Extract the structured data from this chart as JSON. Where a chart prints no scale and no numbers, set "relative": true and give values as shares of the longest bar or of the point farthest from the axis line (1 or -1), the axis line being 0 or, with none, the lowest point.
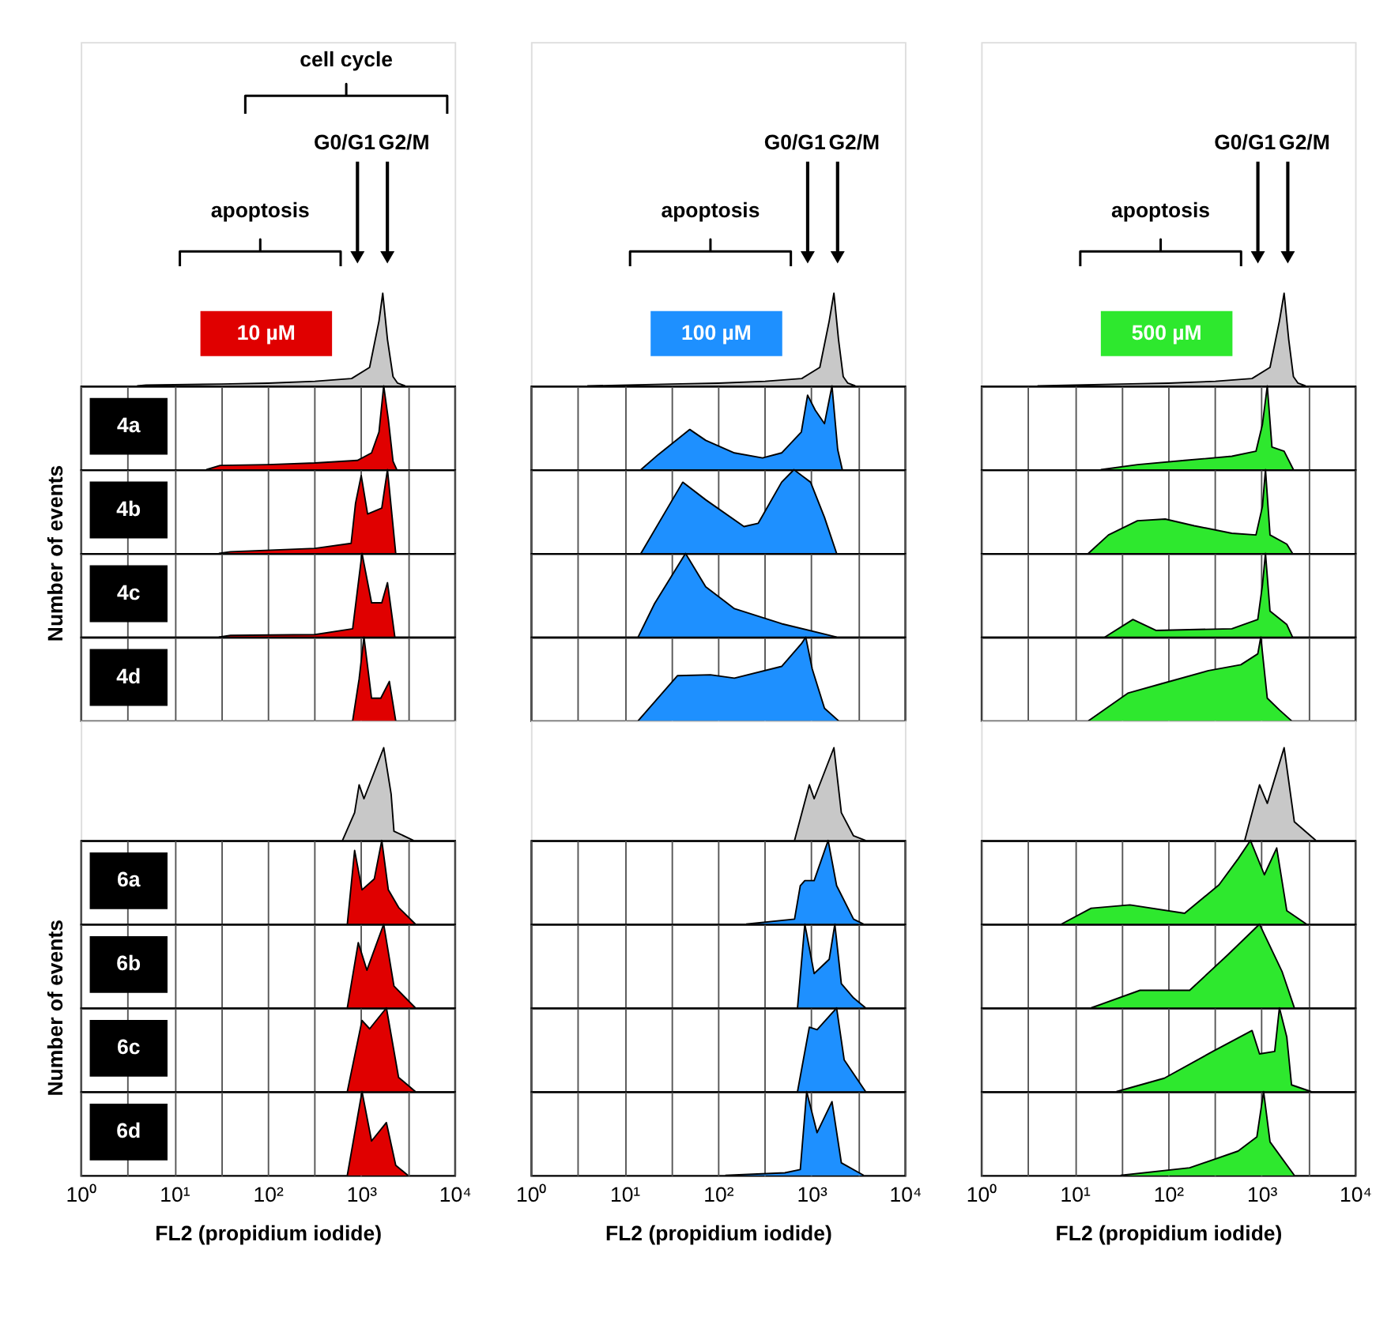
{
  "chart_data": [
    {
      "type": "area",
      "relative": true,
      "log": "x",
      "xlim": [
        1,
        10000
      ],
      "tick_labels": false,
      "title": "10 µM",
      "color": "#c8c8c8",
      "annotations": [
        "cell cycle",
        "G0/G1",
        "G2/M",
        "apoptosis"
      ],
      "x": [
        4.0,
        5.0,
        32,
        100,
        320,
        790,
        1230,
        1550,
        1700,
        1910,
        2190,
        2450,
        2950
      ],
      "values": [
        0,
        0.01,
        0.02,
        0.03,
        0.05,
        0.08,
        0.2,
        0.7,
        1,
        0.5,
        0.1,
        0.03,
        0
      ]
    },
    {
      "type": "area",
      "relative": true,
      "log": "x",
      "xlim": [
        1,
        10000
      ],
      "tick_labels": false,
      "title": "100 µM",
      "color": "#c8c8c8",
      "annotations": [
        "G0/G1",
        "G2/M",
        "apoptosis"
      ],
      "x": [
        4.0,
        32,
        100,
        320,
        790,
        1230,
        1550,
        1740,
        1950,
        2190,
        2450,
        2950
      ],
      "values": [
        0,
        0.02,
        0.03,
        0.05,
        0.08,
        0.2,
        0.7,
        1,
        0.5,
        0.1,
        0.03,
        0
      ]
    },
    {
      "type": "area",
      "relative": true,
      "log": "x",
      "xlim": [
        1,
        10000
      ],
      "tick_labels": false,
      "title": "500 µM",
      "color": "#c8c8c8",
      "annotations": [
        "G0/G1",
        "G2/M",
        "apoptosis"
      ],
      "x": [
        4.0,
        32,
        100,
        320,
        790,
        1230,
        1550,
        1740,
        1950,
        2190,
        2450,
        2950
      ],
      "values": [
        0,
        0.02,
        0.03,
        0.05,
        0.08,
        0.2,
        0.7,
        1,
        0.5,
        0.1,
        0.03,
        0
      ]
    },
    {
      "type": "area",
      "relative": true,
      "log": "x",
      "xlim": [
        1,
        10000
      ],
      "xticks": [
        {
          "value": 1,
          "label": null
        },
        {
          "value": 3.16,
          "label": null
        },
        {
          "value": 10,
          "label": null
        },
        {
          "value": 31.6,
          "label": null
        },
        {
          "value": 100,
          "label": null
        },
        {
          "value": 316,
          "label": null
        },
        {
          "value": 1000,
          "label": null
        },
        {
          "value": 3160,
          "label": null
        },
        {
          "value": 10000,
          "label": null
        }
      ],
      "grid": "x",
      "tick_labels": false,
      "title": "4a",
      "color": "#e00000",
      "x": [
        22,
        31,
        100,
        320,
        910,
        1290,
        1550,
        1740,
        1950,
        2190,
        2400
      ],
      "values": [
        0,
        0.05,
        0.06,
        0.08,
        0.11,
        0.2,
        0.45,
        1,
        0.6,
        0.1,
        0
      ]
    },
    {
      "type": "area",
      "relative": true,
      "log": "x",
      "xlim": [
        1,
        10000
      ],
      "xticks": [
        {
          "value": 1,
          "label": null
        },
        {
          "value": 3.16,
          "label": null
        },
        {
          "value": 10,
          "label": null
        },
        {
          "value": 31.6,
          "label": null
        },
        {
          "value": 100,
          "label": null
        },
        {
          "value": 316,
          "label": null
        },
        {
          "value": 1000,
          "label": null
        },
        {
          "value": 3160,
          "label": null
        },
        {
          "value": 10000,
          "label": null
        }
      ],
      "grid": "x",
      "tick_labels": false,
      "color": "#1e90ff",
      "x": [
        15,
        23,
        50,
        74,
        150,
        300,
        480,
        780,
        910,
        1100,
        1380,
        1660,
        1910,
        2140
      ],
      "values": [
        0,
        0.18,
        0.48,
        0.35,
        0.2,
        0.14,
        0.2,
        0.45,
        0.89,
        0.71,
        0.55,
        1,
        0.24,
        0
      ]
    },
    {
      "type": "area",
      "relative": true,
      "log": "x",
      "xlim": [
        1,
        10000
      ],
      "xticks": [
        {
          "value": 1,
          "label": null
        },
        {
          "value": 3.16,
          "label": null
        },
        {
          "value": 10,
          "label": null
        },
        {
          "value": 31.6,
          "label": null
        },
        {
          "value": 100,
          "label": null
        },
        {
          "value": 316,
          "label": null
        },
        {
          "value": 1000,
          "label": null
        },
        {
          "value": 3160,
          "label": null
        },
        {
          "value": 10000,
          "label": null
        }
      ],
      "grid": "x",
      "tick_labels": false,
      "color": "#2ee82e",
      "x": [
        19,
        47,
        150,
        480,
        870,
        1020,
        1150,
        1290,
        1740,
        2190
      ],
      "values": [
        0,
        0.06,
        0.11,
        0.16,
        0.22,
        0.54,
        1,
        0.27,
        0.22,
        0
      ]
    },
    {
      "type": "area",
      "relative": true,
      "log": "x",
      "xlim": [
        1,
        10000
      ],
      "xticks": [
        {
          "value": 1,
          "label": null
        },
        {
          "value": 3.16,
          "label": null
        },
        {
          "value": 10,
          "label": null
        },
        {
          "value": 31.6,
          "label": null
        },
        {
          "value": 100,
          "label": null
        },
        {
          "value": 316,
          "label": null
        },
        {
          "value": 1000,
          "label": null
        },
        {
          "value": 3160,
          "label": null
        },
        {
          "value": 10000,
          "label": null
        }
      ],
      "grid": "x",
      "tick_labels": false,
      "title": "4b",
      "ylabel": "Number of events",
      "color": "#e00000",
      "x": [
        30,
        40,
        320,
        780,
        870,
        1000,
        1170,
        1660,
        1910,
        2340
      ],
      "values": [
        0,
        0.02,
        0.06,
        0.12,
        0.6,
        0.93,
        0.47,
        0.54,
        1,
        0
      ]
    },
    {
      "type": "area",
      "relative": true,
      "log": "x",
      "xlim": [
        1,
        10000
      ],
      "xticks": [
        {
          "value": 1,
          "label": null
        },
        {
          "value": 3.16,
          "label": null
        },
        {
          "value": 10,
          "label": null
        },
        {
          "value": 31.6,
          "label": null
        },
        {
          "value": 100,
          "label": null
        },
        {
          "value": 316,
          "label": null
        },
        {
          "value": 1000,
          "label": null
        },
        {
          "value": 3160,
          "label": null
        },
        {
          "value": 10000,
          "label": null
        }
      ],
      "grid": "x",
      "tick_labels": false,
      "color": "#1e90ff",
      "x": [
        15,
        42,
        74,
        190,
        270,
        480,
        650,
        980,
        1380,
        1860
      ],
      "values": [
        0,
        0.85,
        0.64,
        0.32,
        0.36,
        0.85,
        1,
        0.85,
        0.43,
        0
      ]
    },
    {
      "type": "area",
      "relative": true,
      "log": "x",
      "xlim": [
        1,
        10000
      ],
      "xticks": [
        {
          "value": 1,
          "label": null
        },
        {
          "value": 3.16,
          "label": null
        },
        {
          "value": 10,
          "label": null
        },
        {
          "value": 31.6,
          "label": null
        },
        {
          "value": 100,
          "label": null
        },
        {
          "value": 316,
          "label": null
        },
        {
          "value": 1000,
          "label": null
        },
        {
          "value": 3160,
          "label": null
        },
        {
          "value": 10000,
          "label": null
        }
      ],
      "grid": "x",
      "tick_labels": false,
      "color": "#2ee82e",
      "x": [
        14,
        23,
        47,
        93,
        190,
        480,
        870,
        1020,
        1100,
        1230,
        1860,
        2140
      ],
      "values": [
        0,
        0.22,
        0.39,
        0.41,
        0.33,
        0.24,
        0.22,
        0.56,
        1,
        0.22,
        0.11,
        0
      ]
    },
    {
      "type": "area",
      "relative": true,
      "log": "x",
      "xlim": [
        1,
        10000
      ],
      "xticks": [
        {
          "value": 1,
          "label": null
        },
        {
          "value": 3.16,
          "label": null
        },
        {
          "value": 10,
          "label": null
        },
        {
          "value": 31.6,
          "label": null
        },
        {
          "value": 100,
          "label": null
        },
        {
          "value": 316,
          "label": null
        },
        {
          "value": 1000,
          "label": null
        },
        {
          "value": 3160,
          "label": null
        },
        {
          "value": 10000,
          "label": null
        }
      ],
      "grid": "x",
      "tick_labels": false,
      "title": "4c",
      "color": "#e00000",
      "x": [
        30,
        40,
        320,
        810,
        1020,
        1290,
        1660,
        1910,
        2290
      ],
      "values": [
        0,
        0.02,
        0.03,
        0.1,
        1,
        0.41,
        0.41,
        0.65,
        0
      ]
    },
    {
      "type": "area",
      "relative": true,
      "log": "x",
      "xlim": [
        1,
        10000
      ],
      "xticks": [
        {
          "value": 1,
          "label": null
        },
        {
          "value": 3.16,
          "label": null
        },
        {
          "value": 10,
          "label": null
        },
        {
          "value": 31.6,
          "label": null
        },
        {
          "value": 100,
          "label": null
        },
        {
          "value": 316,
          "label": null
        },
        {
          "value": 1000,
          "label": null
        },
        {
          "value": 3160,
          "label": null
        },
        {
          "value": 10000,
          "label": null
        }
      ],
      "grid": "x",
      "tick_labels": false,
      "color": "#1e90ff",
      "x": [
        14,
        21,
        45,
        74,
        150,
        480,
        1860
      ],
      "values": [
        0,
        0.4,
        1,
        0.6,
        0.34,
        0.16,
        0
      ]
    },
    {
      "type": "area",
      "relative": true,
      "log": "x",
      "xlim": [
        1,
        10000
      ],
      "xticks": [
        {
          "value": 1,
          "label": null
        },
        {
          "value": 3.16,
          "label": null
        },
        {
          "value": 10,
          "label": null
        },
        {
          "value": 31.6,
          "label": null
        },
        {
          "value": 100,
          "label": null
        },
        {
          "value": 316,
          "label": null
        },
        {
          "value": 1000,
          "label": null
        },
        {
          "value": 3160,
          "label": null
        },
        {
          "value": 10000,
          "label": null
        }
      ],
      "grid": "x",
      "tick_labels": false,
      "color": "#2ee82e",
      "x": [
        21,
        42,
        74,
        480,
        910,
        1020,
        1100,
        1230,
        1860,
        2140
      ],
      "values": [
        0,
        0.21,
        0.08,
        0.1,
        0.21,
        0.62,
        1,
        0.31,
        0.15,
        0
      ]
    },
    {
      "type": "area",
      "relative": true,
      "log": "x",
      "xlim": [
        1,
        10000
      ],
      "xticks": [
        {
          "value": 1,
          "label": null
        },
        {
          "value": 3.16,
          "label": null
        },
        {
          "value": 10,
          "label": null
        },
        {
          "value": 31.6,
          "label": null
        },
        {
          "value": 100,
          "label": null
        },
        {
          "value": 316,
          "label": null
        },
        {
          "value": 1000,
          "label": null
        },
        {
          "value": 3160,
          "label": null
        },
        {
          "value": 10000,
          "label": null
        }
      ],
      "grid": "x",
      "tick_labels": false,
      "title": "4d",
      "color": "#e00000",
      "x": [
        810,
        950,
        1070,
        1290,
        1620,
        2000,
        2340
      ],
      "values": [
        0,
        0.5,
        1,
        0.27,
        0.27,
        0.47,
        0
      ]
    },
    {
      "type": "area",
      "relative": true,
      "log": "x",
      "xlim": [
        1,
        10000
      ],
      "xticks": [
        {
          "value": 1,
          "label": null
        },
        {
          "value": 3.16,
          "label": null
        },
        {
          "value": 10,
          "label": null
        },
        {
          "value": 31.6,
          "label": null
        },
        {
          "value": 100,
          "label": null
        },
        {
          "value": 316,
          "label": null
        },
        {
          "value": 1000,
          "label": null
        },
        {
          "value": 3160,
          "label": null
        },
        {
          "value": 10000,
          "label": null
        }
      ],
      "grid": "x",
      "tick_labels": false,
      "color": "#1e90ff",
      "x": [
        14,
        37,
        83,
        150,
        480,
        780,
        870,
        1020,
        1380,
        1950
      ],
      "values": [
        0,
        0.54,
        0.55,
        0.51,
        0.65,
        0.92,
        1,
        0.62,
        0.15,
        0
      ]
    },
    {
      "type": "area",
      "relative": true,
      "log": "x",
      "xlim": [
        1,
        10000
      ],
      "xticks": [
        {
          "value": 1,
          "label": null
        },
        {
          "value": 3.16,
          "label": null
        },
        {
          "value": 10,
          "label": null
        },
        {
          "value": 31.6,
          "label": null
        },
        {
          "value": 100,
          "label": null
        },
        {
          "value": 316,
          "label": null
        },
        {
          "value": 1000,
          "label": null
        },
        {
          "value": 3160,
          "label": null
        },
        {
          "value": 10000,
          "label": null
        }
      ],
      "grid": "x",
      "tick_labels": false,
      "color": "#2ee82e",
      "x": [
        14,
        37,
        83,
        270,
        600,
        910,
        980,
        1150,
        1550,
        2090
      ],
      "values": [
        0,
        0.33,
        0.44,
        0.6,
        0.67,
        0.8,
        1,
        0.27,
        0.13,
        0
      ]
    },
    {
      "type": "area",
      "relative": true,
      "log": "x",
      "xlim": [
        1,
        10000
      ],
      "tick_labels": false,
      "color": "#c8c8c8",
      "x": [
        630,
        850,
        950,
        1070,
        1740,
        2090,
        2240,
        3630
      ],
      "values": [
        0,
        0.3,
        0.6,
        0.45,
        1,
        0.5,
        0.1,
        0
      ]
    },
    {
      "type": "area",
      "relative": true,
      "log": "x",
      "xlim": [
        1,
        10000
      ],
      "tick_labels": false,
      "color": "#c8c8c8",
      "x": [
        660,
        950,
        1070,
        1740,
        2090,
        2820,
        3800
      ],
      "values": [
        0,
        0.6,
        0.45,
        1,
        0.3,
        0.05,
        0
      ]
    },
    {
      "type": "area",
      "relative": true,
      "log": "x",
      "xlim": [
        1,
        10000
      ],
      "tick_labels": false,
      "color": "#c8c8c8",
      "x": [
        660,
        950,
        1150,
        1740,
        2240,
        3800
      ],
      "values": [
        0,
        0.6,
        0.4,
        1,
        0.2,
        0
      ]
    },
    {
      "type": "area",
      "relative": true,
      "log": "x",
      "xlim": [
        1,
        10000
      ],
      "xticks": [
        {
          "value": 1,
          "label": null
        },
        {
          "value": 3.16,
          "label": null
        },
        {
          "value": 10,
          "label": null
        },
        {
          "value": 31.6,
          "label": null
        },
        {
          "value": 100,
          "label": null
        },
        {
          "value": 316,
          "label": null
        },
        {
          "value": 1000,
          "label": null
        },
        {
          "value": 3160,
          "label": null
        },
        {
          "value": 10000,
          "label": null
        }
      ],
      "grid": "x",
      "tick_labels": false,
      "title": "6a",
      "color": "#e00000",
      "x": [
        710,
        850,
        1020,
        1380,
        1660,
        1950,
        2510,
        3800
      ],
      "values": [
        0,
        0.88,
        0.41,
        0.54,
        1,
        0.41,
        0.2,
        0
      ]
    },
    {
      "type": "area",
      "relative": true,
      "log": "x",
      "xlim": [
        1,
        10000
      ],
      "xticks": [
        {
          "value": 1,
          "label": null
        },
        {
          "value": 3.16,
          "label": null
        },
        {
          "value": 10,
          "label": null
        },
        {
          "value": 31.6,
          "label": null
        },
        {
          "value": 100,
          "label": null
        },
        {
          "value": 316,
          "label": null
        },
        {
          "value": 1000,
          "label": null
        },
        {
          "value": 3160,
          "label": null
        },
        {
          "value": 10000,
          "label": null
        }
      ],
      "grid": "x",
      "tick_labels": false,
      "color": "#1e90ff",
      "x": [
        200,
        660,
        760,
        850,
        1070,
        1510,
        1860,
        2820,
        3630
      ],
      "values": [
        0,
        0.06,
        0.46,
        0.52,
        0.52,
        1,
        0.46,
        0.06,
        0
      ]
    },
    {
      "type": "area",
      "relative": true,
      "log": "x",
      "xlim": [
        1,
        10000
      ],
      "xticks": [
        {
          "value": 1,
          "label": null
        },
        {
          "value": 3.16,
          "label": null
        },
        {
          "value": 10,
          "label": null
        },
        {
          "value": 31.6,
          "label": null
        },
        {
          "value": 100,
          "label": null
        },
        {
          "value": 316,
          "label": null
        },
        {
          "value": 1000,
          "label": null
        },
        {
          "value": 3160,
          "label": null
        },
        {
          "value": 10000,
          "label": null
        }
      ],
      "grid": "x",
      "tick_labels": false,
      "color": "#2ee82e",
      "x": [
        7.2,
        15,
        39,
        150,
        350,
        560,
        760,
        1070,
        1450,
        1860,
        3020
      ],
      "values": [
        0,
        0.19,
        0.23,
        0.13,
        0.47,
        0.78,
        1,
        0.59,
        0.91,
        0.16,
        0
      ]
    },
    {
      "type": "area",
      "relative": true,
      "log": "x",
      "xlim": [
        1,
        10000
      ],
      "xticks": [
        {
          "value": 1,
          "label": null
        },
        {
          "value": 3.16,
          "label": null
        },
        {
          "value": 10,
          "label": null
        },
        {
          "value": 31.6,
          "label": null
        },
        {
          "value": 100,
          "label": null
        },
        {
          "value": 316,
          "label": null
        },
        {
          "value": 1000,
          "label": null
        },
        {
          "value": 3160,
          "label": null
        },
        {
          "value": 10000,
          "label": null
        }
      ],
      "grid": "x",
      "tick_labels": false,
      "title": "6b",
      "ylabel": "Number of events",
      "color": "#e00000",
      "x": [
        710,
        930,
        1150,
        1740,
        2240,
        3800
      ],
      "values": [
        0,
        0.78,
        0.45,
        1,
        0.26,
        0
      ]
    },
    {
      "type": "area",
      "relative": true,
      "log": "x",
      "xlim": [
        1,
        10000
      ],
      "xticks": [
        {
          "value": 1,
          "label": null
        },
        {
          "value": 3.16,
          "label": null
        },
        {
          "value": 10,
          "label": null
        },
        {
          "value": 31.6,
          "label": null
        },
        {
          "value": 100,
          "label": null
        },
        {
          "value": 316,
          "label": null
        },
        {
          "value": 1000,
          "label": null
        },
        {
          "value": 3160,
          "label": null
        },
        {
          "value": 10000,
          "label": null
        }
      ],
      "grid": "x",
      "tick_labels": false,
      "color": "#1e90ff",
      "x": [
        710,
        850,
        1070,
        1550,
        1780,
        2090,
        2820,
        3800
      ],
      "values": [
        0,
        1,
        0.41,
        0.58,
        1,
        0.29,
        0.12,
        0
      ]
    },
    {
      "type": "area",
      "relative": true,
      "log": "x",
      "xlim": [
        1,
        10000
      ],
      "xticks": [
        {
          "value": 1,
          "label": null
        },
        {
          "value": 3.16,
          "label": null
        },
        {
          "value": 10,
          "label": null
        },
        {
          "value": 31.6,
          "label": null
        },
        {
          "value": 100,
          "label": null
        },
        {
          "value": 316,
          "label": null
        },
        {
          "value": 1000,
          "label": null
        },
        {
          "value": 3160,
          "label": null
        },
        {
          "value": 10000,
          "label": null
        }
      ],
      "grid": "x",
      "tick_labels": false,
      "color": "#2ee82e",
      "x": [
        15,
        50,
        170,
        440,
        950,
        1660,
        2240
      ],
      "values": [
        0,
        0.21,
        0.21,
        0.64,
        1,
        0.43,
        0
      ]
    },
    {
      "type": "area",
      "relative": true,
      "log": "x",
      "xlim": [
        1,
        10000
      ],
      "xticks": [
        {
          "value": 1,
          "label": null
        },
        {
          "value": 3.16,
          "label": null
        },
        {
          "value": 10,
          "label": null
        },
        {
          "value": 31.6,
          "label": null
        },
        {
          "value": 100,
          "label": null
        },
        {
          "value": 316,
          "label": null
        },
        {
          "value": 1000,
          "label": null
        },
        {
          "value": 3160,
          "label": null
        },
        {
          "value": 10000,
          "label": null
        }
      ],
      "grid": "x",
      "tick_labels": false,
      "title": "6c",
      "color": "#e00000",
      "x": [
        710,
        1020,
        1230,
        1860,
        2510,
        3800
      ],
      "values": [
        0,
        0.85,
        0.75,
        1,
        0.17,
        0
      ]
    },
    {
      "type": "area",
      "relative": true,
      "log": "x",
      "xlim": [
        1,
        10000
      ],
      "xticks": [
        {
          "value": 1,
          "label": null
        },
        {
          "value": 3.16,
          "label": null
        },
        {
          "value": 10,
          "label": null
        },
        {
          "value": 31.6,
          "label": null
        },
        {
          "value": 100,
          "label": null
        },
        {
          "value": 316,
          "label": null
        },
        {
          "value": 1000,
          "label": null
        },
        {
          "value": 3160,
          "label": null
        },
        {
          "value": 10000,
          "label": null
        }
      ],
      "grid": "x",
      "tick_labels": false,
      "color": "#1e90ff",
      "x": [
        710,
        950,
        1150,
        1860,
        2240,
        3800
      ],
      "values": [
        0,
        0.77,
        0.74,
        1,
        0.38,
        0
      ]
    },
    {
      "type": "area",
      "relative": true,
      "log": "x",
      "xlim": [
        1,
        10000
      ],
      "xticks": [
        {
          "value": 1,
          "label": null
        },
        {
          "value": 3.16,
          "label": null
        },
        {
          "value": 10,
          "label": null
        },
        {
          "value": 31.6,
          "label": null
        },
        {
          "value": 100,
          "label": null
        },
        {
          "value": 316,
          "label": null
        },
        {
          "value": 1000,
          "label": null
        },
        {
          "value": 3160,
          "label": null
        },
        {
          "value": 10000,
          "label": null
        }
      ],
      "grid": "x",
      "tick_labels": false,
      "color": "#2ee82e",
      "x": [
        28,
        91,
        300,
        790,
        950,
        1380,
        1550,
        1860,
        2090,
        3390
      ],
      "values": [
        0,
        0.16,
        0.48,
        0.73,
        0.45,
        0.48,
        1,
        0.65,
        0.08,
        0
      ]
    },
    {
      "type": "area",
      "relative": true,
      "log": "x",
      "xlim": [
        1,
        10000
      ],
      "xticks": [
        {
          "value": 1,
          "label": "10⁰"
        },
        {
          "value": 3.16,
          "label": null
        },
        {
          "value": 10,
          "label": "10¹"
        },
        {
          "value": 31.6,
          "label": null
        },
        {
          "value": 100,
          "label": "10²"
        },
        {
          "value": 316,
          "label": null
        },
        {
          "value": 1000,
          "label": "10³"
        },
        {
          "value": 3160,
          "label": null
        },
        {
          "value": 10000,
          "label": "10⁴"
        }
      ],
      "grid": "x",
      "tick_labels": "x",
      "title": "6d",
      "xlabel": "FL2 (propidium iodide)",
      "color": "#e00000",
      "x": [
        710,
        1020,
        1290,
        1860,
        2340,
        3160
      ],
      "values": [
        0,
        1,
        0.41,
        0.63,
        0.12,
        0
      ]
    },
    {
      "type": "area",
      "relative": true,
      "log": "x",
      "xlim": [
        1,
        10000
      ],
      "xticks": [
        {
          "value": 1,
          "label": "10⁰"
        },
        {
          "value": 3.16,
          "label": null
        },
        {
          "value": 10,
          "label": "10¹"
        },
        {
          "value": 31.6,
          "label": null
        },
        {
          "value": 100,
          "label": "10²"
        },
        {
          "value": 316,
          "label": null
        },
        {
          "value": 1000,
          "label": "10³"
        },
        {
          "value": 3160,
          "label": null
        },
        {
          "value": 10000,
          "label": "10⁴"
        }
      ],
      "grid": "x",
      "tick_labels": "x",
      "xlabel": "FL2 (propidium iodide)",
      "color": "#1e90ff",
      "x": [
        120,
        520,
        760,
        890,
        1150,
        1660,
        2090,
        3630
      ],
      "values": [
        0,
        0.03,
        0.07,
        1,
        0.51,
        0.88,
        0.15,
        0
      ]
    },
    {
      "type": "area",
      "relative": true,
      "log": "x",
      "xlim": [
        1,
        10000
      ],
      "xticks": [
        {
          "value": 1,
          "label": "10⁰"
        },
        {
          "value": 3.16,
          "label": null
        },
        {
          "value": 10,
          "label": "10¹"
        },
        {
          "value": 31.6,
          "label": null
        },
        {
          "value": 100,
          "label": "10²"
        },
        {
          "value": 316,
          "label": null
        },
        {
          "value": 1000,
          "label": "10³"
        },
        {
          "value": 3160,
          "label": null
        },
        {
          "value": 10000,
          "label": "10⁴"
        }
      ],
      "grid": "x",
      "tick_labels": "x",
      "xlabel": "FL2 (propidium iodide)",
      "color": "#2ee82e",
      "x": [
        31,
        170,
        560,
        890,
        1050,
        1230,
        2240
      ],
      "values": [
        0,
        0.09,
        0.29,
        0.46,
        1,
        0.4,
        0
      ]
    }
  ]
}
